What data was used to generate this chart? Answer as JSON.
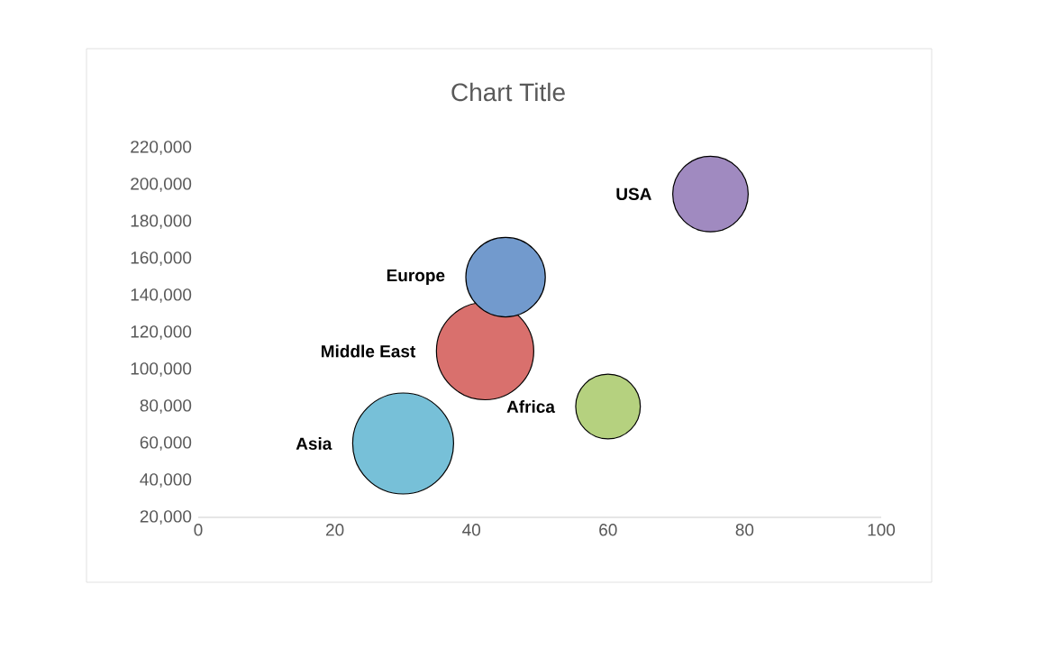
{
  "chart_data": {
    "type": "bubble",
    "title": "Chart Title",
    "series": [
      {
        "name": "Asia",
        "color": "#77c0d8",
        "x": [
          30
        ],
        "values": [
          60000
        ],
        "sizes": [
          1
        ]
      },
      {
        "name": "Middle East",
        "color": "#d9706d",
        "x": [
          42
        ],
        "values": [
          110000
        ],
        "sizes": [
          0.93
        ]
      },
      {
        "name": "Europe",
        "color": "#729acd",
        "x": [
          45
        ],
        "values": [
          150000
        ],
        "sizes": [
          0.62
        ]
      },
      {
        "name": "Africa",
        "color": "#b5d17f",
        "x": [
          60
        ],
        "values": [
          80000
        ],
        "sizes": [
          0.41
        ]
      },
      {
        "name": "USA",
        "color": "#a08ac0",
        "x": [
          75
        ],
        "values": [
          195000
        ],
        "sizes": [
          0.56
        ]
      }
    ],
    "xlim": [
      0,
      100
    ],
    "xticks": [
      0,
      20,
      40,
      60,
      80,
      100
    ],
    "ylim": [
      20000,
      220000
    ],
    "yticks": [
      {
        "value": 20000,
        "label": "20,000"
      },
      {
        "value": 40000,
        "label": "40,000"
      },
      {
        "value": 60000,
        "label": "60,000"
      },
      {
        "value": 80000,
        "label": "80,000"
      },
      {
        "value": 100000,
        "label": "100,000"
      },
      {
        "value": 120000,
        "label": "120,000"
      },
      {
        "value": 140000,
        "label": "140,000"
      },
      {
        "value": 160000,
        "label": "160,000"
      },
      {
        "value": 180000,
        "label": "180,000"
      },
      {
        "value": 200000,
        "label": "200,000"
      },
      {
        "value": 220000,
        "label": "220,000"
      }
    ],
    "grid": false,
    "legend": false
  }
}
